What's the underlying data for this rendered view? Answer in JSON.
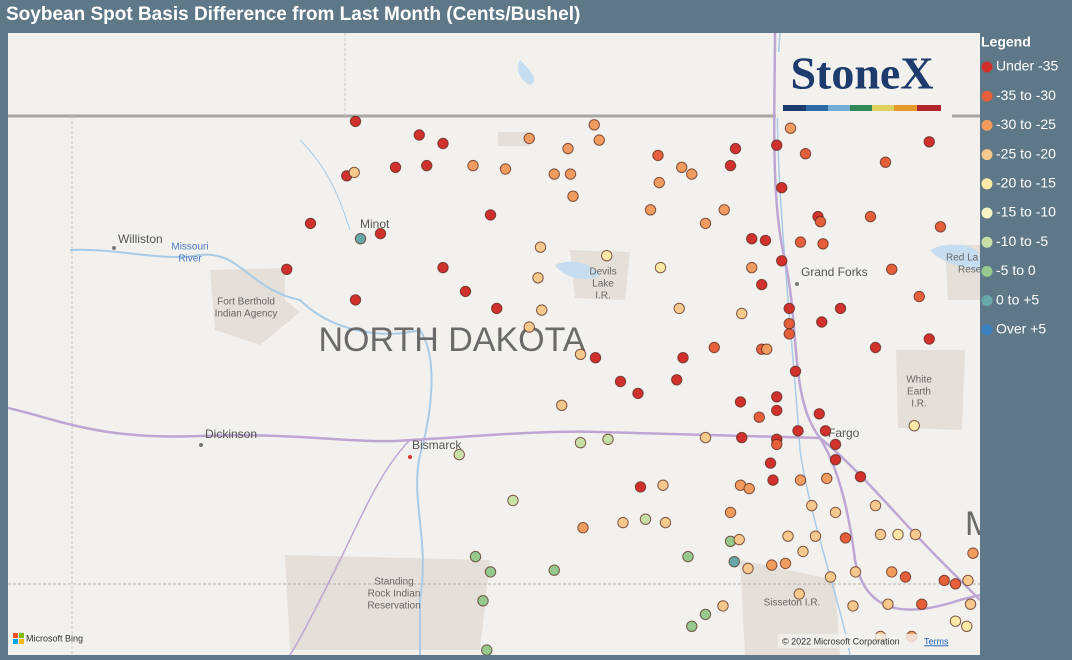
{
  "title": "Soybean Spot Basis Difference from Last Month (Cents/Bushel)",
  "legend": {
    "title": "Legend",
    "items": [
      {
        "label": "Under -35",
        "color": "#d0312d"
      },
      {
        "label": "-35 to -30",
        "color": "#e5603a"
      },
      {
        "label": "-30 to -25",
        "color": "#f19c5e"
      },
      {
        "label": "-25 to -20",
        "color": "#f6c88c"
      },
      {
        "label": "-20 to -15",
        "color": "#fbe9a7"
      },
      {
        "label": "-15 to -10",
        "color": "#f4f4c6"
      },
      {
        "label": "-10 to -5",
        "color": "#c6e0a8"
      },
      {
        "label": "-5 to 0",
        "color": "#95c98e"
      },
      {
        "label": "0 to +5",
        "color": "#67a9a8"
      },
      {
        "label": "Over +5",
        "color": "#3b7fc1"
      }
    ]
  },
  "logo": "StoneX",
  "map_labels": {
    "williston": "Williston",
    "missouri_river": [
      "Missouri",
      "River"
    ],
    "minot": "Minot",
    "fort_berthold": [
      "Fort Berthold",
      "Indian Agency"
    ],
    "state": "NORTH DAKOTA",
    "devils_lake": [
      "Devils",
      "Lake",
      "I.R."
    ],
    "grand_forks": "Grand Forks",
    "red_lake": [
      "Red La",
      "Rese"
    ],
    "white_earth": [
      "White",
      "Earth",
      "I.R."
    ],
    "dickinson": "Dickinson",
    "bismarck": "Bismarck",
    "fargo": "Fargo",
    "standing_rock": [
      "Standing",
      "Rock Indian",
      "Reservation"
    ],
    "sisseton": "Sisseton I.R.",
    "minnesota": "M"
  },
  "attribution": {
    "bing": "Microsoft Bing",
    "copyright": "© 2022 Microsoft Corporation",
    "terms": "Terms"
  },
  "points": [
    [
      -101.52,
      48.68,
      0
    ],
    [
      -101.01,
      48.6,
      0
    ],
    [
      -100.82,
      48.55,
      0
    ],
    [
      -101.2,
      48.41,
      0
    ],
    [
      -100.95,
      48.42,
      0
    ],
    [
      -101.59,
      48.36,
      0
    ],
    [
      -101.53,
      48.38,
      3
    ],
    [
      -100.58,
      48.42,
      2
    ],
    [
      -100.32,
      48.4,
      2
    ],
    [
      -100.13,
      48.58,
      2
    ],
    [
      -99.61,
      48.66,
      2
    ],
    [
      -99.57,
      48.57,
      2
    ],
    [
      -99.82,
      48.52,
      2
    ],
    [
      -99.93,
      48.37,
      2
    ],
    [
      -99.8,
      48.37,
      2
    ],
    [
      -99.78,
      48.24,
      2
    ],
    [
      -99.1,
      48.48,
      1
    ],
    [
      -99.09,
      48.32,
      2
    ],
    [
      -98.91,
      48.41,
      2
    ],
    [
      -98.83,
      48.37,
      2
    ],
    [
      -98.48,
      48.52,
      0
    ],
    [
      -98.52,
      48.42,
      0
    ],
    [
      -98.15,
      48.54,
      0
    ],
    [
      -98.04,
      48.64,
      2
    ],
    [
      -97.92,
      48.49,
      1
    ],
    [
      -98.11,
      48.29,
      0
    ],
    [
      -96.93,
      48.56,
      0
    ],
    [
      -97.28,
      48.44,
      1
    ],
    [
      -101.88,
      48.08,
      0
    ],
    [
      -101.48,
      47.99,
      8
    ],
    [
      -101.32,
      48.02,
      0
    ],
    [
      -100.44,
      48.13,
      0
    ],
    [
      -99.16,
      48.16,
      2
    ],
    [
      -98.57,
      48.16,
      2
    ],
    [
      -98.72,
      48.08,
      2
    ],
    [
      -98.35,
      47.99,
      0
    ],
    [
      -98.24,
      47.98,
      0
    ],
    [
      -97.82,
      48.12,
      0
    ],
    [
      -97.8,
      48.09,
      1
    ],
    [
      -97.96,
      47.97,
      1
    ],
    [
      -97.78,
      47.96,
      1
    ],
    [
      -97.4,
      48.12,
      1
    ],
    [
      -96.84,
      48.06,
      1
    ],
    [
      -100.04,
      47.94,
      3
    ],
    [
      -99.51,
      47.89,
      4
    ],
    [
      -99.08,
      47.82,
      4
    ],
    [
      -100.06,
      47.76,
      3
    ],
    [
      -100.82,
      47.82,
      0
    ],
    [
      -102.07,
      47.81,
      0
    ],
    [
      -101.52,
      47.63,
      0
    ],
    [
      -100.64,
      47.68,
      0
    ],
    [
      -100.39,
      47.58,
      0
    ],
    [
      -100.03,
      47.57,
      3
    ],
    [
      -100.13,
      47.47,
      3
    ],
    [
      -98.35,
      47.82,
      2
    ],
    [
      -98.11,
      47.86,
      0
    ],
    [
      -98.27,
      47.72,
      0
    ],
    [
      -98.43,
      47.55,
      3
    ],
    [
      -98.93,
      47.58,
      3
    ],
    [
      -98.05,
      47.58,
      0
    ],
    [
      -97.64,
      47.58,
      0
    ],
    [
      -97.23,
      47.81,
      1
    ],
    [
      -97.01,
      47.65,
      1
    ],
    [
      -97.79,
      47.5,
      0
    ],
    [
      -98.05,
      47.49,
      1
    ],
    [
      -98.05,
      47.43,
      1
    ],
    [
      -98.27,
      47.34,
      1
    ],
    [
      -98.23,
      47.34,
      2
    ],
    [
      -98.65,
      47.35,
      1
    ],
    [
      -98.9,
      47.29,
      0
    ],
    [
      -99.6,
      47.29,
      0
    ],
    [
      -99.72,
      47.31,
      3
    ],
    [
      -97.36,
      47.35,
      0
    ],
    [
      -96.93,
      47.4,
      0
    ],
    [
      -98.0,
      47.21,
      0
    ],
    [
      -99.4,
      47.15,
      0
    ],
    [
      -99.26,
      47.08,
      0
    ],
    [
      -98.95,
      47.16,
      0
    ],
    [
      -99.87,
      47.01,
      3
    ],
    [
      -98.44,
      47.03,
      0
    ],
    [
      -98.15,
      47.06,
      0
    ],
    [
      -98.15,
      46.98,
      0
    ],
    [
      -98.29,
      46.94,
      1
    ],
    [
      -97.81,
      46.96,
      0
    ],
    [
      -98.43,
      46.82,
      0
    ],
    [
      -98.15,
      46.81,
      0
    ],
    [
      -98.15,
      46.78,
      1
    ],
    [
      -98.72,
      46.82,
      3
    ],
    [
      -97.98,
      46.86,
      0
    ],
    [
      -97.76,
      46.86,
      0
    ],
    [
      -97.68,
      46.78,
      0
    ],
    [
      -97.05,
      46.89,
      4
    ],
    [
      -99.5,
      46.81,
      6
    ],
    [
      -99.72,
      46.79,
      6
    ],
    [
      -100.69,
      46.72,
      6
    ],
    [
      -98.2,
      46.67,
      0
    ],
    [
      -97.68,
      46.69,
      0
    ],
    [
      -97.75,
      46.58,
      2
    ],
    [
      -97.96,
      46.57,
      2
    ],
    [
      -98.18,
      46.57,
      0
    ],
    [
      -97.48,
      46.59,
      0
    ],
    [
      -99.24,
      46.53,
      0
    ],
    [
      -99.06,
      46.54,
      3
    ],
    [
      -98.44,
      46.54,
      2
    ],
    [
      -98.37,
      46.52,
      2
    ],
    [
      -100.26,
      46.45,
      6
    ],
    [
      -97.87,
      46.42,
      3
    ],
    [
      -97.68,
      46.38,
      3
    ],
    [
      -97.36,
      46.42,
      3
    ],
    [
      -99.7,
      46.29,
      2
    ],
    [
      -99.38,
      46.32,
      3
    ],
    [
      -99.2,
      46.34,
      6
    ],
    [
      -99.04,
      46.32,
      3
    ],
    [
      -98.52,
      46.38,
      2
    ],
    [
      -98.06,
      46.24,
      3
    ],
    [
      -97.84,
      46.24,
      3
    ],
    [
      -97.6,
      46.23,
      1
    ],
    [
      -97.32,
      46.25,
      3
    ],
    [
      -97.18,
      46.25,
      4
    ],
    [
      -97.04,
      46.25,
      3
    ],
    [
      -98.52,
      46.21,
      7
    ],
    [
      -98.45,
      46.22,
      3
    ],
    [
      -98.86,
      46.12,
      7
    ],
    [
      -98.49,
      46.09,
      8
    ],
    [
      -98.38,
      46.05,
      3
    ],
    [
      -98.19,
      46.07,
      2
    ],
    [
      -98.08,
      46.08,
      2
    ],
    [
      -97.94,
      46.15,
      3
    ],
    [
      -100.56,
      46.12,
      7
    ],
    [
      -100.44,
      46.03,
      7
    ],
    [
      -99.93,
      46.04,
      7
    ],
    [
      -97.72,
      46.0,
      3
    ],
    [
      -97.52,
      46.03,
      3
    ],
    [
      -97.23,
      46.03,
      2
    ],
    [
      -97.12,
      46.0,
      1
    ],
    [
      -96.81,
      45.98,
      1
    ],
    [
      -96.72,
      45.96,
      1
    ],
    [
      -96.58,
      46.14,
      2
    ],
    [
      -96.62,
      45.98,
      3
    ],
    [
      -100.5,
      45.86,
      7
    ],
    [
      -98.72,
      45.78,
      7
    ],
    [
      -98.58,
      45.83,
      3
    ],
    [
      -98.83,
      45.71,
      7
    ],
    [
      -97.97,
      45.9,
      3
    ],
    [
      -97.54,
      45.83,
      3
    ],
    [
      -97.26,
      45.84,
      3
    ],
    [
      -96.99,
      45.84,
      1
    ],
    [
      -96.6,
      45.84,
      3
    ],
    [
      -96.72,
      45.74,
      4
    ],
    [
      -96.63,
      45.71,
      4
    ],
    [
      -97.32,
      45.65,
      3
    ],
    [
      -97.07,
      45.65,
      2
    ],
    [
      -100.47,
      45.57,
      7
    ]
  ]
}
